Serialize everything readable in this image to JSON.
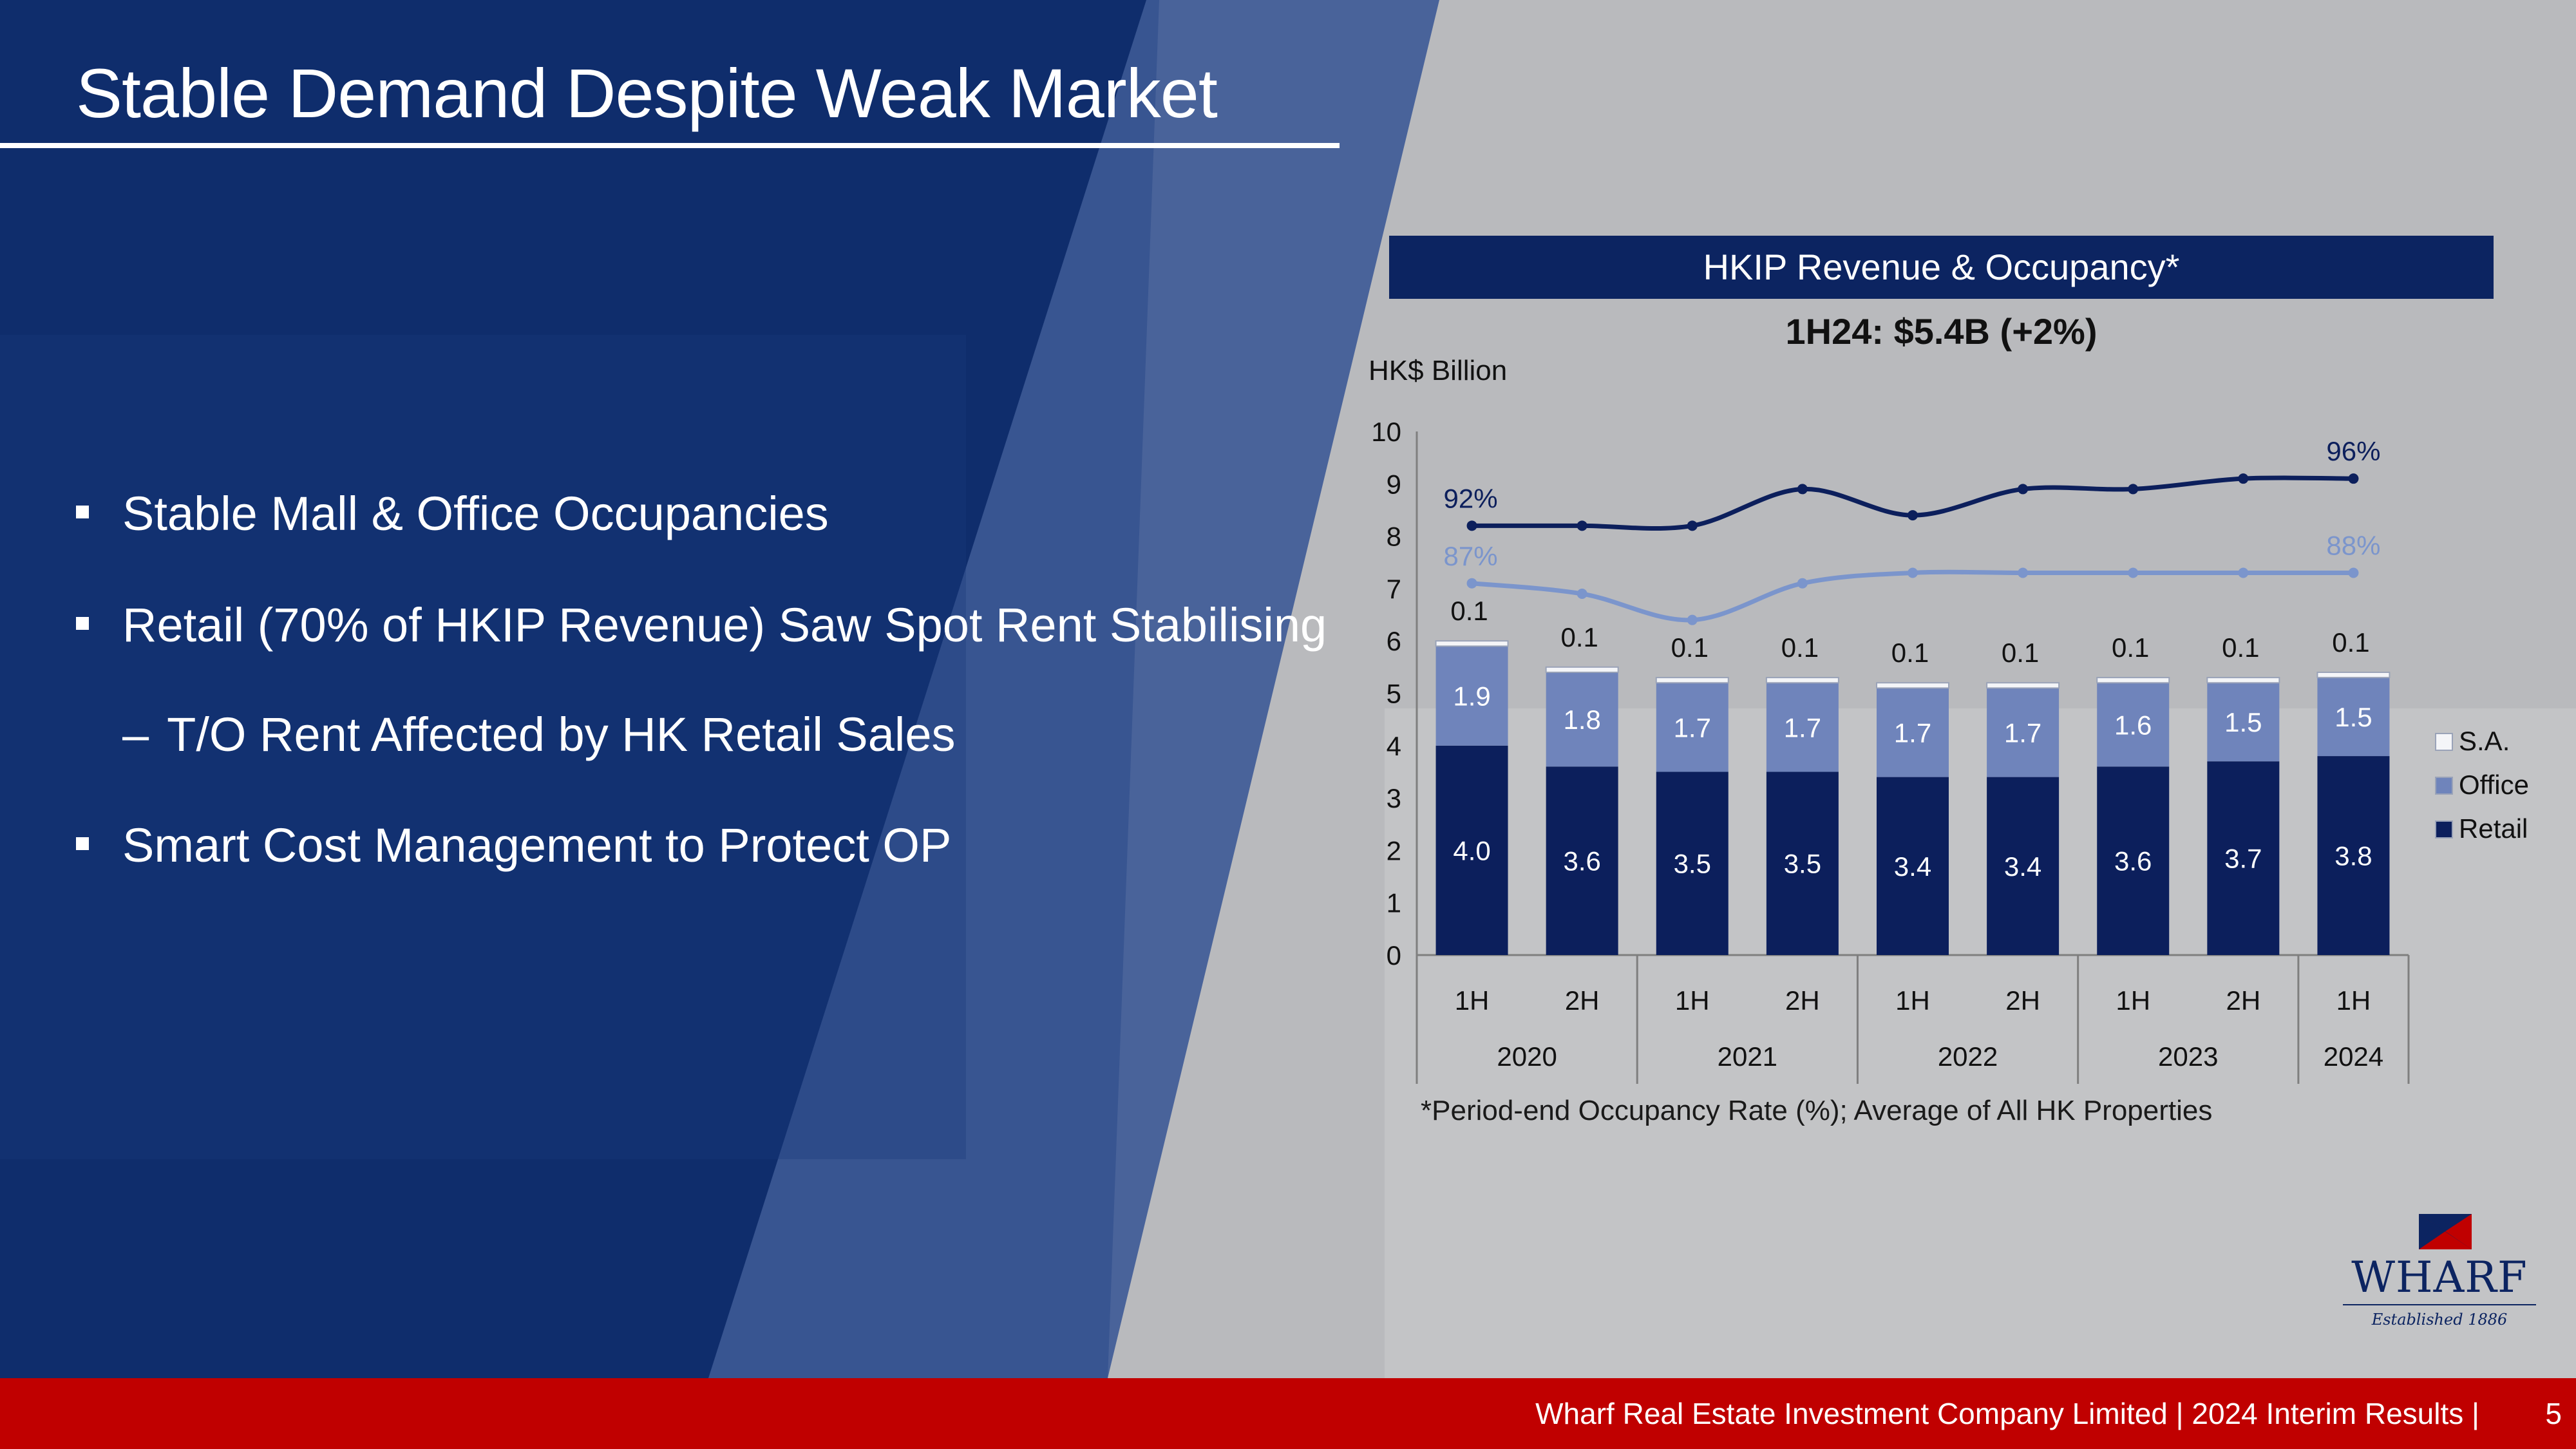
{
  "slide": {
    "title": "Stable Demand Despite Weak Market",
    "bullets": [
      "Stable Mall & Office Occupancies",
      "Retail (70% of HKIP Revenue) Saw Spot Rent Stabilising",
      "T/O Rent Affected by HK Retail Sales",
      "Smart Cost Management to Protect OP"
    ],
    "sub_bullet_marker": "–"
  },
  "chart_panel": {
    "header": "HKIP Revenue & Occupancy*",
    "subtitle": "1H24: $5.4B (+2%)",
    "footnote": "*Period-end Occupancy Rate (%); Average of All HK Properties"
  },
  "chart_data": {
    "type": "bar",
    "stacked": true,
    "ylabel": "HK$ Billion",
    "ylim": [
      0,
      10
    ],
    "yticks": [
      "0",
      "1",
      "2",
      "3",
      "4",
      "5",
      "6",
      "7",
      "8",
      "9",
      "10"
    ],
    "categories": [
      "1H",
      "2H",
      "1H",
      "2H",
      "1H",
      "2H",
      "1H",
      "2H",
      "1H"
    ],
    "year_groups": [
      {
        "year": "2020",
        "count": 2
      },
      {
        "year": "2021",
        "count": 2
      },
      {
        "year": "2022",
        "count": 2
      },
      {
        "year": "2023",
        "count": 2
      },
      {
        "year": "2024",
        "count": 1
      }
    ],
    "series": [
      {
        "name": "Retail",
        "color": "#0c1f5c",
        "values": [
          4.0,
          3.6,
          3.5,
          3.5,
          3.4,
          3.4,
          3.6,
          3.7,
          3.8
        ],
        "labels": [
          "4.0",
          "3.6",
          "3.5",
          "3.5",
          "3.4",
          "3.4",
          "3.6",
          "3.7",
          "3.8"
        ]
      },
      {
        "name": "Office",
        "color": "#6f84bb",
        "values": [
          1.9,
          1.8,
          1.7,
          1.7,
          1.7,
          1.7,
          1.6,
          1.5,
          1.5
        ],
        "labels": [
          "1.9",
          "1.8",
          "1.7",
          "1.7",
          "1.7",
          "1.7",
          "1.6",
          "1.5",
          "1.5"
        ]
      },
      {
        "name": "S.A.",
        "color": "#f4f5f8",
        "values": [
          0.1,
          0.1,
          0.1,
          0.1,
          0.1,
          0.1,
          0.1,
          0.1,
          0.1
        ],
        "labels": [
          "0.1",
          "0.1",
          "0.1",
          "0.1",
          "0.1",
          "0.1",
          "0.1",
          "0.1",
          "0.1"
        ]
      }
    ],
    "occupancy_lines": [
      {
        "color": "#0c1f5c",
        "y_plot": [
          8.2,
          8.2,
          8.2,
          8.9,
          8.4,
          8.9,
          8.9,
          9.1,
          9.1
        ],
        "start_label": "92%",
        "end_label": "96%"
      },
      {
        "color": "#7b95cc",
        "y_plot": [
          7.1,
          6.9,
          6.4,
          7.1,
          7.3,
          7.3,
          7.3,
          7.3,
          7.3
        ],
        "start_label": "87%",
        "end_label": "88%"
      }
    ],
    "legend": {
      "position": "right",
      "order": [
        "S.A.",
        "Office",
        "Retail"
      ]
    }
  },
  "logo": {
    "name": "WHARF",
    "tagline": "Established 1886"
  },
  "footer": {
    "text": "Wharf Real Estate Investment Company Limited | 2024 Interim Results |",
    "page": "5"
  },
  "colors": {
    "navy": "#0c2461",
    "red": "#c00000",
    "slate": "#b8b9bc"
  }
}
